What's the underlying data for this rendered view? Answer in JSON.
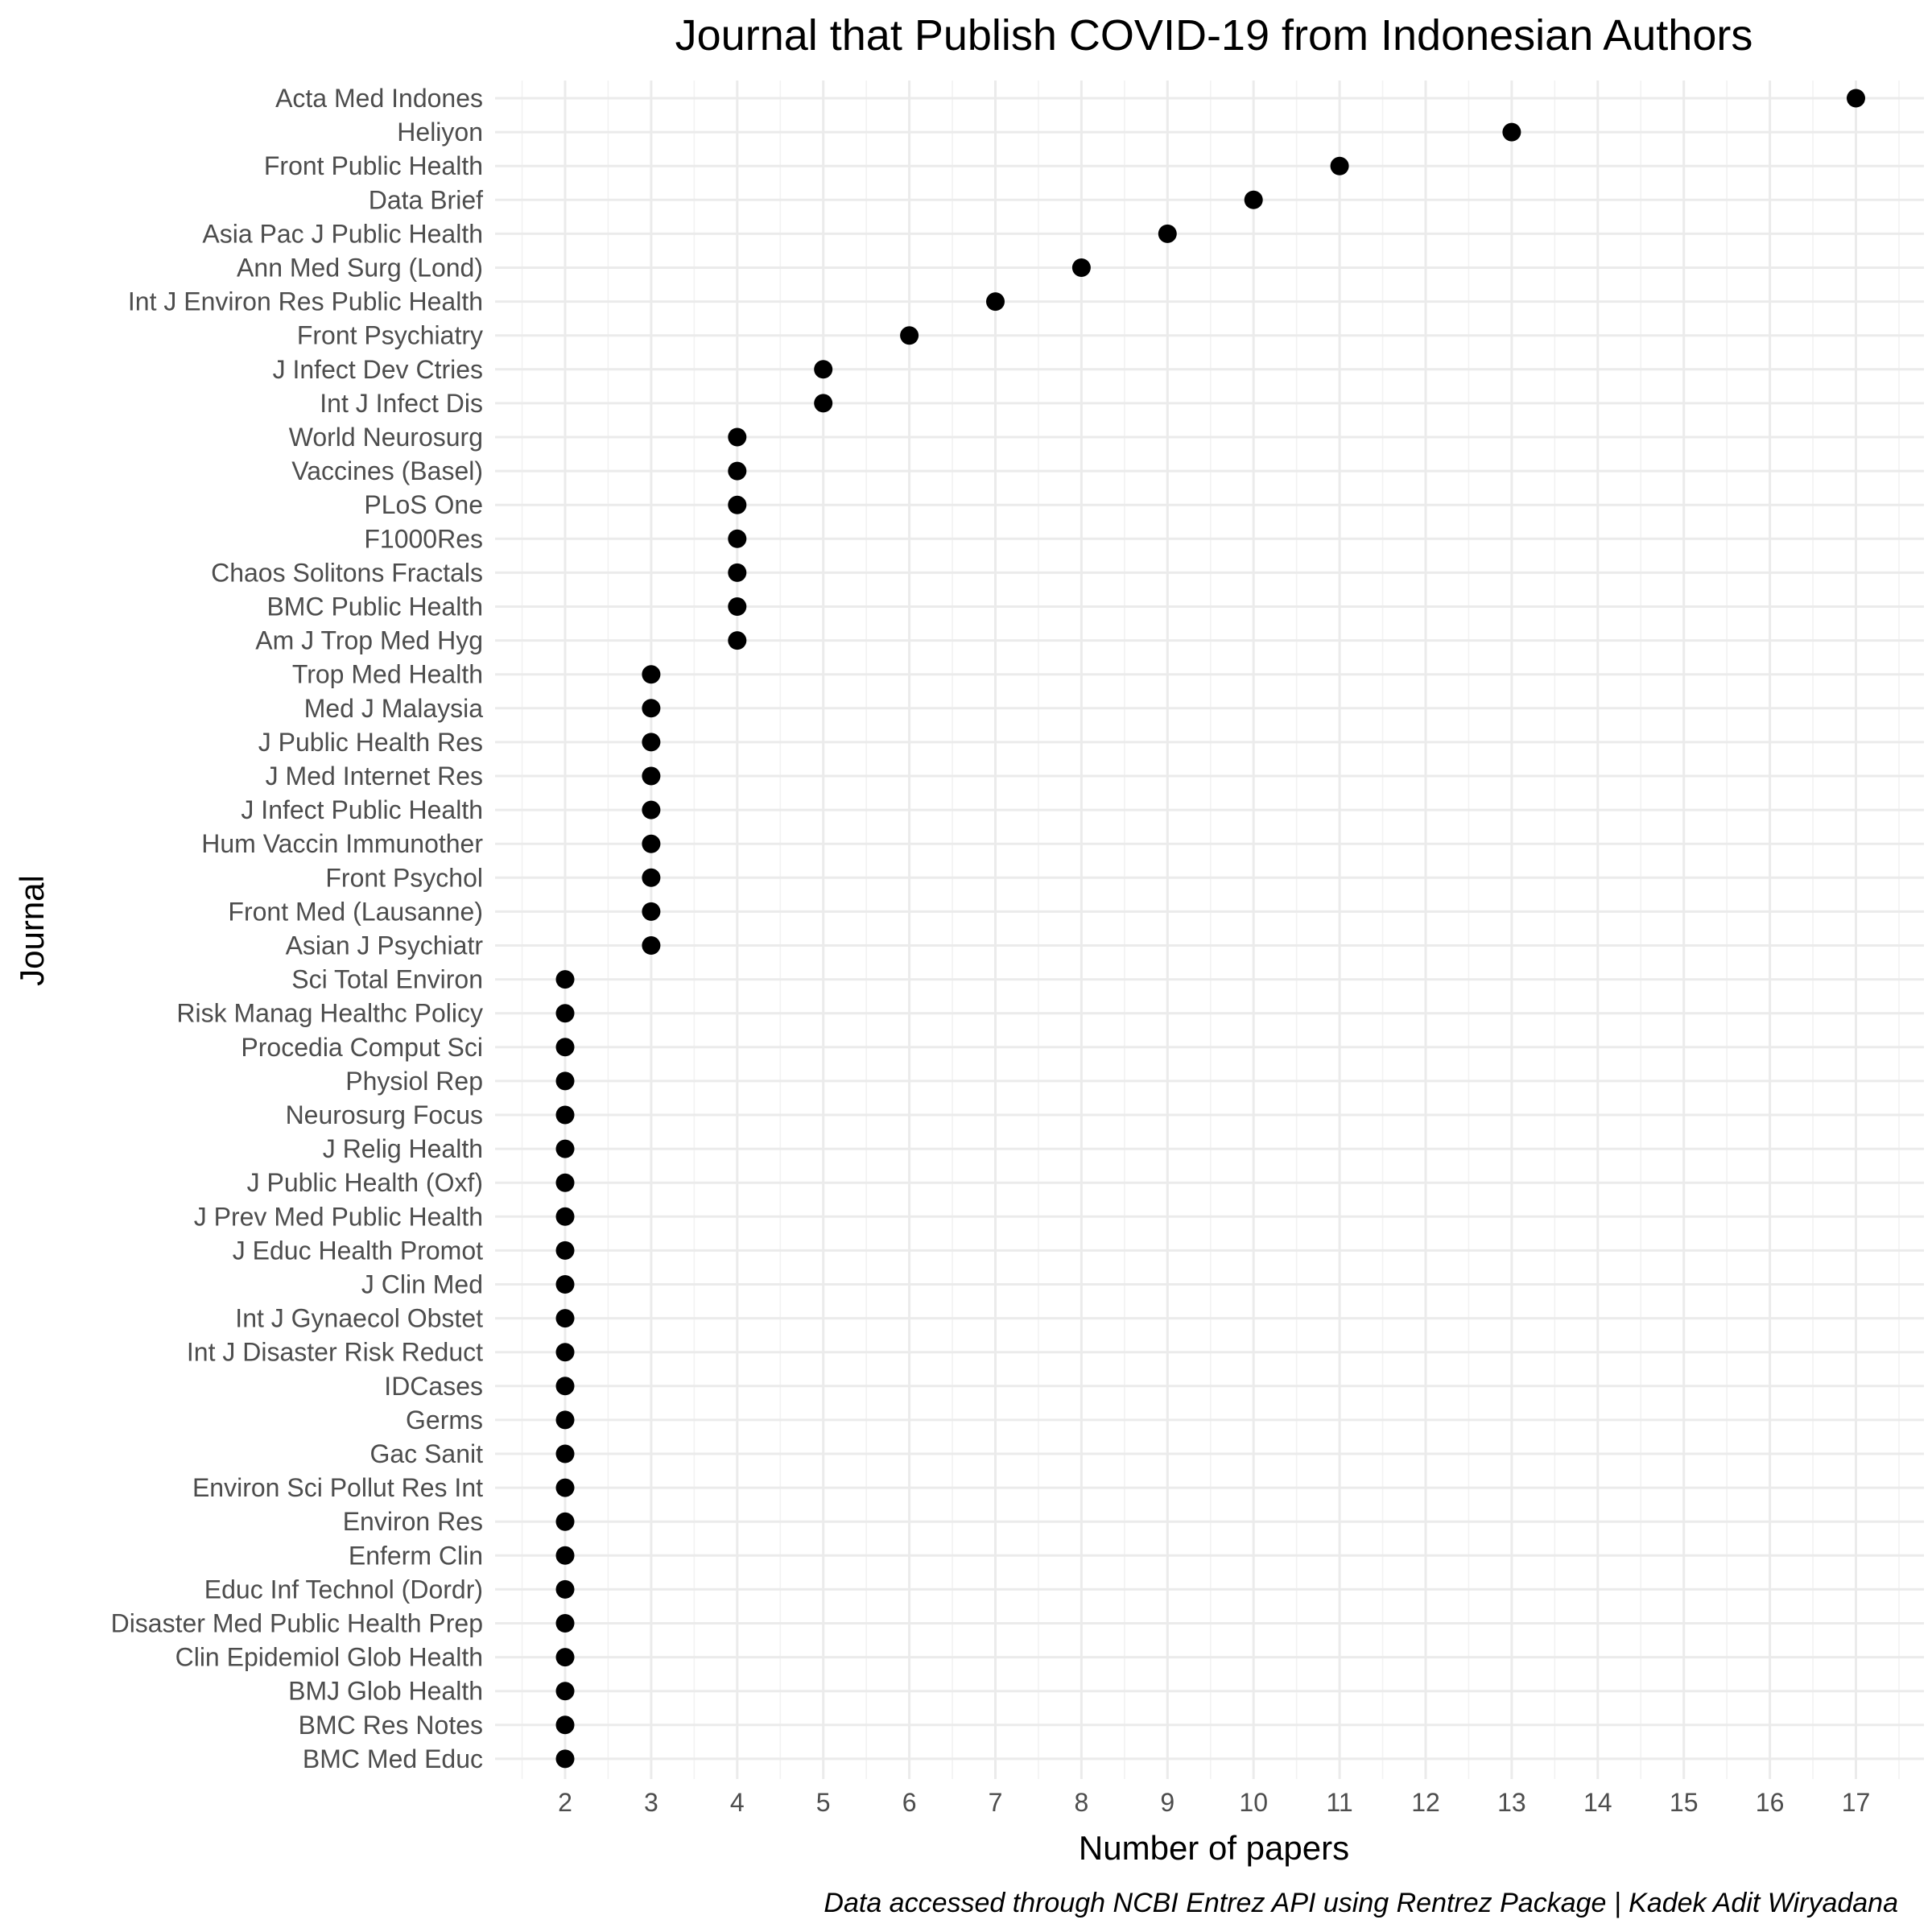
{
  "chart_data": {
    "type": "scatter",
    "title": "Journal that Publish COVID-19 from Indonesian Authors",
    "xlabel": "Number of papers",
    "ylabel": "Journal",
    "caption": "Data accessed through NCBI Entrez API using Rentrez Package | Kadek Adit Wiryadana",
    "xlim": [
      1.5,
      17.5
    ],
    "xticks": [
      2,
      3,
      4,
      5,
      6,
      7,
      8,
      9,
      10,
      11,
      12,
      13,
      14,
      15,
      16,
      17
    ],
    "grid": true,
    "point_color": "#000000",
    "categories": [
      "Acta Med Indones",
      "Heliyon",
      "Front Public Health",
      "Data Brief",
      "Asia Pac J Public Health",
      "Ann Med Surg (Lond)",
      "Int J Environ Res Public Health",
      "Front Psychiatry",
      "J Infect Dev Ctries",
      "Int J Infect Dis",
      "World Neurosurg",
      "Vaccines (Basel)",
      "PLoS One",
      "F1000Res",
      "Chaos Solitons Fractals",
      "BMC Public Health",
      "Am J Trop Med Hyg",
      "Trop Med Health",
      "Med J Malaysia",
      "J Public Health Res",
      "J Med Internet Res",
      "J Infect Public Health",
      "Hum Vaccin Immunother",
      "Front Psychol",
      "Front Med (Lausanne)",
      "Asian J Psychiatr",
      "Sci Total Environ",
      "Risk Manag Healthc Policy",
      "Procedia Comput Sci",
      "Physiol Rep",
      "Neurosurg Focus",
      "J Relig Health",
      "J Public Health (Oxf)",
      "J Prev Med Public Health",
      "J Educ Health Promot",
      "J Clin Med",
      "Int J Gynaecol Obstet",
      "Int J Disaster Risk Reduct",
      "IDCases",
      "Germs",
      "Gac Sanit",
      "Environ Sci Pollut Res Int",
      "Environ Res",
      "Enferm Clin",
      "Educ Inf Technol (Dordr)",
      "Disaster Med Public Health Prep",
      "Clin Epidemiol Glob Health",
      "BMJ Glob Health",
      "BMC Res Notes",
      "BMC Med Educ"
    ],
    "values": [
      17,
      13,
      11,
      10,
      9,
      8,
      7,
      6,
      5,
      5,
      4,
      4,
      4,
      4,
      4,
      4,
      4,
      3,
      3,
      3,
      3,
      3,
      3,
      3,
      3,
      3,
      2,
      2,
      2,
      2,
      2,
      2,
      2,
      2,
      2,
      2,
      2,
      2,
      2,
      2,
      2,
      2,
      2,
      2,
      2,
      2,
      2,
      2,
      2,
      2
    ]
  }
}
